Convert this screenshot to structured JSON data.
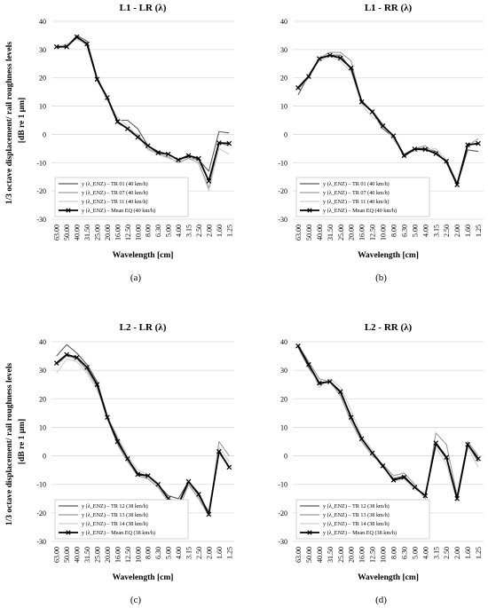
{
  "chart_data": [
    {
      "type": "line",
      "panel_label": "(a)",
      "title": "L1 - LR (λ)",
      "xlabel": "Wavelength [cm]",
      "ylabel": "1/3 octave displacement/ rail roughness levels",
      "ylabel2": "[dB re 1 μm]",
      "ylim": [
        -30,
        40
      ],
      "yticks": [
        -30,
        -20,
        -10,
        0,
        10,
        20,
        30,
        40
      ],
      "grid": "horizontal",
      "legend_position": "bottom-left",
      "categories": [
        "63.00",
        "50.00",
        "40.00",
        "31.50",
        "25.00",
        "20.00",
        "16.00",
        "12.50",
        "10.00",
        "8.00",
        "6.30",
        "5.00",
        "4.00",
        "3.15",
        "2.50",
        "2.00",
        "1.60",
        "1.25"
      ],
      "series": [
        {
          "name": "y (λ_ENZ) – TR 01 (40 km/h)",
          "color": "#595959",
          "values": [
            31,
            31,
            35,
            33,
            20,
            13,
            5,
            5,
            2,
            -4,
            -6,
            -7,
            -9,
            -8,
            -9,
            -13,
            1,
            0.5
          ]
        },
        {
          "name": "y (λ_ENZ) – TR 07 (40 km/h)",
          "color": "#9a9a9a",
          "values": [
            30.5,
            31.5,
            34,
            31.5,
            19.5,
            12.5,
            4,
            2,
            0,
            -5,
            -7,
            -8,
            -10,
            -8.5,
            -10,
            -19,
            -3,
            -4
          ]
        },
        {
          "name": "y (λ_ENZ) – TR 11 (40 km/h)",
          "color": "#cfcfcf",
          "values": [
            31,
            32,
            33.5,
            32,
            19,
            12,
            6,
            3,
            -0.5,
            -5.5,
            -7,
            -8.5,
            -9.5,
            -7.5,
            -10.5,
            -20,
            -5,
            -7
          ]
        },
        {
          "name": "y (λ_ENZ) – Mean EQ (40 km/h)",
          "color": "#000000",
          "mean": true,
          "values": [
            31,
            31,
            34.5,
            32,
            19.5,
            13,
            4.5,
            2,
            -1,
            -4,
            -6.5,
            -7,
            -9,
            -7.5,
            -8.5,
            -16.5,
            -3,
            -3.2
          ]
        }
      ]
    },
    {
      "type": "line",
      "panel_label": "(b)",
      "title": "L1 - RR (λ)",
      "xlabel": "Wavelength [cm]",
      "ylabel": "",
      "ylabel2": "",
      "ylim": [
        -30,
        40
      ],
      "yticks": [
        -30,
        -20,
        -10,
        0,
        10,
        20,
        30,
        40
      ],
      "grid": "horizontal",
      "legend_position": "bottom-left",
      "categories": [
        "63.00",
        "50.00",
        "40.00",
        "31.50",
        "25.00",
        "20.00",
        "16.00",
        "12.50",
        "10.00",
        "8.00",
        "6.30",
        "5.00",
        "4.00",
        "3.15",
        "2.50",
        "2.00",
        "1.60",
        "1.25"
      ],
      "series": [
        {
          "name": "y (λ_ENZ) – TR 01 (40 km/h)",
          "color": "#595959",
          "values": [
            14,
            21,
            27,
            28,
            28,
            23,
            12,
            8,
            2,
            -1,
            -7,
            -5,
            -5,
            -6,
            -10,
            -18,
            -5.5,
            -6
          ]
        },
        {
          "name": "y (λ_ENZ) – TR 07 (40 km/h)",
          "color": "#9a9a9a",
          "values": [
            16,
            20,
            27,
            29,
            29,
            26,
            11,
            8.5,
            3.5,
            -1,
            -8,
            -5,
            -4,
            -7,
            -9,
            -17,
            -4,
            -1.5
          ]
        },
        {
          "name": "y (λ_ENZ) – TR 11 (40 km/h)",
          "color": "#cfcfcf",
          "values": [
            17,
            21,
            26,
            27.5,
            26,
            22,
            10.5,
            6,
            4,
            -2,
            -7,
            -6,
            -5.5,
            -5,
            -9,
            -18.5,
            -3,
            -3.5
          ]
        },
        {
          "name": "y (λ_ENZ) – Mean EQ (40 km/h)",
          "color": "#000000",
          "mean": true,
          "values": [
            16.5,
            20.5,
            26.8,
            28,
            27,
            23.5,
            11.5,
            8,
            3,
            -0.5,
            -7.5,
            -5.2,
            -5.3,
            -6.8,
            -9.5,
            -17.8,
            -3.7,
            -3.2
          ]
        }
      ]
    },
    {
      "type": "line",
      "panel_label": "(c)",
      "title": "L2 - LR (λ)",
      "xlabel": "Wavelength [cm]",
      "ylabel": "1/3 octave displacement/ rail roughness levels",
      "ylabel2": "[dB re 1 μm]",
      "ylim": [
        -30,
        40
      ],
      "yticks": [
        -30,
        -20,
        -10,
        0,
        10,
        20,
        30,
        40
      ],
      "grid": "horizontal",
      "legend_position": "bottom-left",
      "categories": [
        "63.00",
        "50.00",
        "40.00",
        "31.50",
        "25.00",
        "20.00",
        "16.00",
        "12.50",
        "10.00",
        "8.00",
        "6.30",
        "5.00",
        "4.00",
        "3.15",
        "2.50",
        "2.00",
        "1.60",
        "1.25"
      ],
      "series": [
        {
          "name": "y (λ_ENZ) – TR 12 (38 km/h)",
          "color": "#595959",
          "values": [
            35,
            39,
            36,
            32,
            26,
            14,
            6,
            -1,
            -6,
            -7,
            -10,
            -14,
            -15,
            -9,
            -13,
            -20,
            2,
            -4
          ]
        },
        {
          "name": "y (λ_ENZ) – TR 13 (38 km/h)",
          "color": "#9a9a9a",
          "values": [
            32,
            35,
            34,
            30,
            24,
            13,
            4,
            -2,
            -7,
            -8,
            -11,
            -16,
            -19,
            -10,
            -15,
            -21,
            5,
            0
          ]
        },
        {
          "name": "y (λ_ENZ) – TR 14 (38 km/h)",
          "color": "#cfcfcf",
          "values": [
            29,
            34,
            33,
            29,
            23,
            14,
            7,
            0,
            -5,
            -6.5,
            -9.5,
            -15,
            -17,
            -9.5,
            -14,
            -19,
            3,
            -2
          ]
        },
        {
          "name": "y (λ_ENZ) – Mean EQ (38 km/h)",
          "color": "#000000",
          "mean": true,
          "values": [
            32.5,
            35.5,
            34.5,
            31,
            25,
            13.5,
            5,
            -1,
            -6.5,
            -7,
            -10,
            -15,
            -17,
            -9,
            -13.5,
            -20.5,
            1.5,
            -4
          ]
        }
      ]
    },
    {
      "type": "line",
      "panel_label": "(d)",
      "title": "L2 - RR (λ)",
      "xlabel": "Wavelength [cm]",
      "ylabel": "",
      "ylabel2": "",
      "ylim": [
        -30,
        40
      ],
      "yticks": [
        -30,
        -20,
        -10,
        0,
        10,
        20,
        30,
        40
      ],
      "grid": "horizontal",
      "legend_position": "bottom-left",
      "categories": [
        "63.00",
        "50.00",
        "40.00",
        "31.50",
        "25.00",
        "20.00",
        "16.00",
        "12.50",
        "10.00",
        "8.00",
        "6.30",
        "5.00",
        "4.00",
        "3.15",
        "2.50",
        "2.00",
        "1.60",
        "1.25"
      ],
      "series": [
        {
          "name": "y (λ_ENZ) – TR 12 (38 km/h)",
          "color": "#595959",
          "values": [
            38,
            31,
            25,
            26,
            22,
            14,
            6,
            1,
            -4,
            -8,
            -7,
            -11,
            -14,
            4,
            -1,
            -15,
            4,
            -2
          ]
        },
        {
          "name": "y (λ_ENZ) – TR 13 (38 km/h)",
          "color": "#9a9a9a",
          "values": [
            39,
            33,
            27,
            26,
            21,
            12,
            5,
            0,
            -3,
            -7,
            -6,
            -10,
            -15,
            8,
            4,
            -14,
            5,
            0
          ]
        },
        {
          "name": "y (λ_ENZ) – TR 14 (38 km/h)",
          "color": "#cfcfcf",
          "values": [
            38,
            32,
            24,
            27,
            24,
            16,
            7,
            2,
            -3.5,
            -9,
            -8,
            -12,
            -13,
            3,
            -3,
            -16,
            3,
            -4
          ]
        },
        {
          "name": "y (λ_ENZ) – Mean EQ (38 km/h)",
          "color": "#000000",
          "mean": true,
          "values": [
            38.5,
            32,
            25.5,
            26,
            22.5,
            13.5,
            6,
            1,
            -3.5,
            -8.5,
            -7.5,
            -11,
            -14,
            4.5,
            -0.5,
            -15,
            4,
            -1
          ]
        }
      ]
    }
  ]
}
